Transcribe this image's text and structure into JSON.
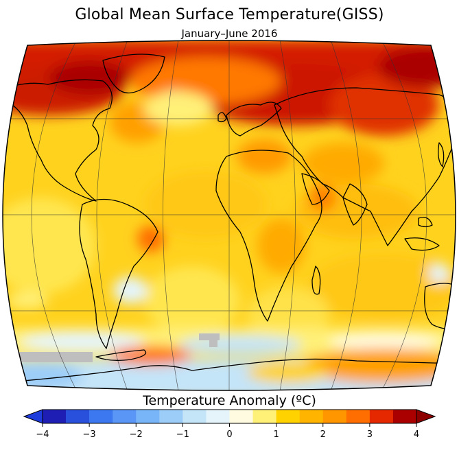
{
  "title": "Global Mean Surface Temperature(GISS)",
  "subtitle": "January–June 2016",
  "colorbar": {
    "title": "Temperature Anomaly (ºC)",
    "min": -4,
    "max": 4,
    "step": 0.5,
    "tick_values": [
      -4,
      -3,
      -2,
      -1,
      0,
      1,
      2,
      3,
      4
    ],
    "tick_labels": [
      "−4",
      "−3",
      "−2",
      "−1",
      "0",
      "1",
      "2",
      "3",
      "4"
    ],
    "colors": [
      "#1e1eb4",
      "#2850dc",
      "#3c78f0",
      "#5a96f5",
      "#78b4f8",
      "#9ccdf8",
      "#c4e4f8",
      "#e4f4fa",
      "#fffbe0",
      "#fff078",
      "#ffd200",
      "#ffb400",
      "#ff9600",
      "#ff6e00",
      "#e62800",
      "#aa0000"
    ],
    "under_color": "#1e3cdc",
    "over_color": "#8c0000"
  },
  "map": {
    "projection": "robinson",
    "missing_data_color": "#bebebe",
    "ocean_base_color": "#ffd21e",
    "land_outline_color": "#000000"
  }
}
